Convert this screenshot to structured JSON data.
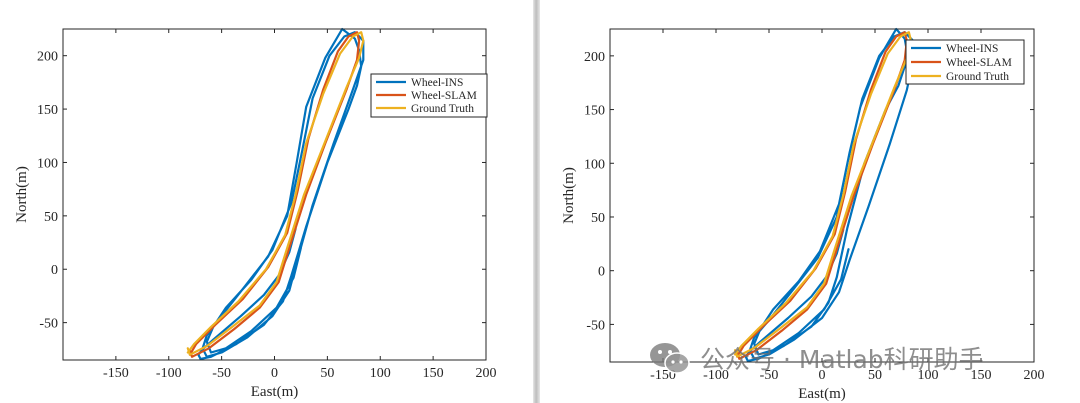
{
  "watermark": {
    "text": "公众号 · Matlab科研助手"
  },
  "chart_data": [
    {
      "type": "line",
      "xlabel": "East(m)",
      "ylabel": "North(m)",
      "xlim": [
        -200,
        200
      ],
      "ylim": [
        -85,
        225
      ],
      "xticks": [
        -150,
        -100,
        -50,
        0,
        50,
        100,
        150,
        200
      ],
      "yticks": [
        -50,
        0,
        50,
        100,
        150,
        200
      ],
      "grid": false,
      "legend_position": "top-right",
      "series": [
        {
          "name": "Wheel-INS",
          "color": "#0072BD",
          "x": [
            20,
            14,
            4,
            -10,
            -32,
            -58,
            -68,
            -72,
            -70,
            -60,
            -36,
            -10,
            8,
            16,
            30,
            50,
            70,
            78,
            82,
            80,
            76,
            64,
            48,
            30,
            21,
            12,
            -6,
            -28,
            -52,
            -64,
            -68,
            -64,
            -50,
            -26,
            -2,
            14,
            22,
            36,
            56,
            74,
            84,
            84,
            76,
            66,
            52,
            36,
            26,
            16,
            -2,
            -22,
            -46,
            -58,
            -64,
            -60,
            -46,
            -22,
            2,
            18,
            25
          ],
          "y": [
            38,
            16,
            -6,
            -24,
            -44,
            -66,
            -75,
            -80,
            -84,
            -82,
            -70,
            -52,
            -30,
            -6,
            40,
            100,
            150,
            172,
            190,
            205,
            216,
            225,
            198,
            152,
            100,
            50,
            12,
            -16,
            -46,
            -62,
            -74,
            -82,
            -78,
            -64,
            -44,
            -20,
            10,
            60,
            118,
            168,
            196,
            214,
            222,
            218,
            200,
            160,
            110,
            62,
            18,
            -10,
            -36,
            -54,
            -68,
            -78,
            -74,
            -58,
            -36,
            -8,
            20
          ]
        },
        {
          "name": "Wheel-SLAM",
          "color": "#D95319",
          "x": [
            -80,
            -78,
            -62,
            -38,
            -14,
            4,
            14,
            30,
            48,
            68,
            78,
            80,
            78,
            70,
            60,
            46,
            32,
            22,
            12,
            -6,
            -30,
            -56,
            -74,
            -80
          ],
          "y": [
            -76,
            -82,
            -74,
            -56,
            -36,
            -12,
            20,
            70,
            118,
            168,
            196,
            214,
            222,
            218,
            204,
            168,
            122,
            74,
            34,
            2,
            -28,
            -52,
            -70,
            -80
          ]
        },
        {
          "name": "Ground Truth",
          "color": "#EDB120",
          "x": [
            -82,
            -80,
            -64,
            -40,
            -14,
            2,
            12,
            28,
            48,
            68,
            80,
            84,
            82,
            74,
            62,
            46,
            30,
            20,
            10,
            -8,
            -34,
            -60,
            -76,
            -82
          ],
          "y": [
            -74,
            -80,
            -72,
            -54,
            -34,
            -12,
            20,
            70,
            120,
            170,
            198,
            214,
            222,
            218,
            202,
            164,
            118,
            70,
            32,
            0,
            -30,
            -54,
            -70,
            -78
          ]
        }
      ]
    },
    {
      "type": "line",
      "xlabel": "East(m)",
      "ylabel": "North(m)",
      "xlim": [
        -200,
        200
      ],
      "ylim": [
        -85,
        225
      ],
      "xticks": [
        -150,
        -100,
        -50,
        0,
        50,
        100,
        150,
        200
      ],
      "yticks": [
        -50,
        0,
        50,
        100,
        150,
        200
      ],
      "grid": false,
      "legend_position": "top-right",
      "series": [
        {
          "name": "Wheel-INS",
          "color": "#0072BD",
          "x": [
            20,
            14,
            4,
            -10,
            -32,
            -58,
            -68,
            -72,
            -70,
            -60,
            -36,
            -10,
            6,
            14,
            24,
            40,
            60,
            72,
            78,
            80,
            78,
            70,
            54,
            36,
            24,
            14,
            -4,
            -26,
            -50,
            -64,
            -68,
            -64,
            -50,
            -26,
            0,
            16,
            26,
            44,
            64,
            80,
            86,
            86,
            78,
            68,
            54,
            38,
            26,
            16,
            -2,
            -22,
            -46,
            -58,
            -64,
            -60,
            -46,
            -22,
            2,
            18,
            25
          ],
          "y": [
            38,
            16,
            -6,
            -24,
            -44,
            -66,
            -75,
            -80,
            -84,
            -82,
            -70,
            -52,
            -30,
            -6,
            40,
            100,
            150,
            172,
            190,
            205,
            216,
            225,
            198,
            152,
            100,
            50,
            12,
            -16,
            -46,
            -62,
            -74,
            -82,
            -78,
            -64,
            -44,
            -20,
            10,
            60,
            118,
            168,
            196,
            214,
            222,
            218,
            200,
            160,
            110,
            62,
            18,
            -10,
            -36,
            -54,
            -68,
            -78,
            -74,
            -58,
            -36,
            -8,
            20
          ]
        },
        {
          "name": "Wheel-SLAM",
          "color": "#D95319",
          "x": [
            -80,
            -78,
            -62,
            -38,
            -14,
            4,
            14,
            30,
            48,
            68,
            78,
            80,
            78,
            70,
            60,
            46,
            32,
            22,
            12,
            -6,
            -30,
            -56,
            -74,
            -80
          ],
          "y": [
            -76,
            -82,
            -74,
            -56,
            -36,
            -12,
            20,
            70,
            118,
            168,
            196,
            214,
            222,
            218,
            204,
            168,
            122,
            74,
            34,
            2,
            -28,
            -52,
            -70,
            -80
          ]
        },
        {
          "name": "Ground Truth",
          "color": "#EDB120",
          "x": [
            -82,
            -80,
            -64,
            -40,
            -14,
            2,
            12,
            28,
            48,
            68,
            80,
            84,
            82,
            74,
            62,
            46,
            30,
            20,
            10,
            -8,
            -34,
            -60,
            -76,
            -82
          ],
          "y": [
            -74,
            -80,
            -72,
            -54,
            -34,
            -12,
            20,
            70,
            120,
            170,
            198,
            214,
            222,
            218,
            202,
            164,
            118,
            70,
            32,
            0,
            -30,
            -54,
            -70,
            -78
          ]
        }
      ]
    }
  ]
}
